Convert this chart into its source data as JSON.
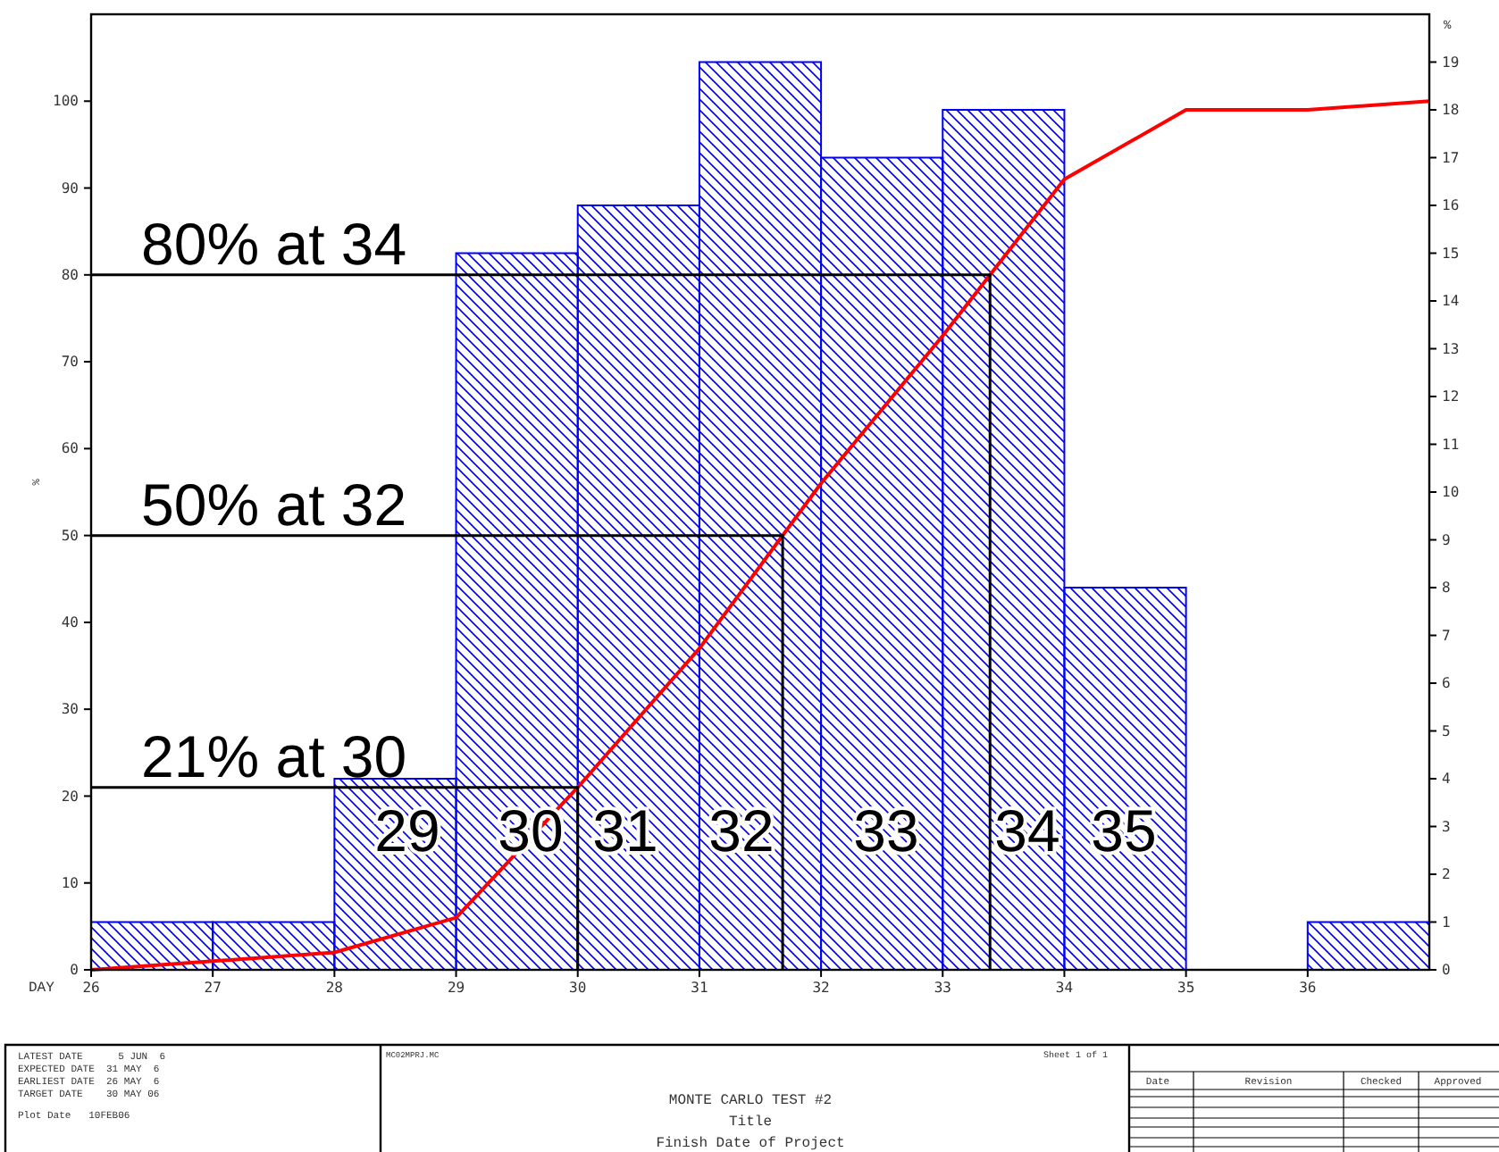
{
  "chart_data": {
    "type": "histogram",
    "title": "MONTE CARLO TEST #2",
    "xlabel": "DAY",
    "ylabel": "%",
    "y2label": "%",
    "bins": [
      26,
      27,
      28,
      29,
      30,
      31,
      32,
      33,
      34,
      35,
      36,
      37
    ],
    "series": [
      {
        "type": "histogram",
        "axis": "y2",
        "color": "#0000ff",
        "values": [
          1,
          1,
          4,
          15,
          16,
          19,
          17,
          18,
          8,
          0,
          1
        ]
      },
      {
        "type": "line",
        "color": "#ff0000",
        "x": [
          26,
          27,
          28,
          29,
          30,
          31,
          32,
          33,
          34,
          35,
          36,
          37
        ],
        "values": [
          0,
          1,
          2,
          6,
          21,
          37,
          56,
          73,
          91,
          99,
          99,
          100
        ]
      }
    ],
    "xlim": [
      26,
      37
    ],
    "xticks": [
      26,
      27,
      28,
      29,
      30,
      31,
      32,
      33,
      34,
      35,
      36
    ],
    "ylim": [
      0,
      110
    ],
    "yticks": [
      0,
      10,
      20,
      30,
      40,
      50,
      60,
      70,
      80,
      90,
      100
    ],
    "y2lim": [
      0,
      20
    ],
    "y2ticks": [
      0,
      1,
      2,
      3,
      4,
      5,
      6,
      7,
      8,
      9,
      10,
      11,
      12,
      13,
      14,
      15,
      16,
      17,
      18,
      19
    ],
    "marker": "none",
    "line_style": "solid",
    "ref_lines": [
      {
        "axis": "y",
        "value": 21,
        "label": "21% at 30",
        "color": "#000000"
      },
      {
        "axis": "y",
        "value": 50,
        "label": "50% at 32",
        "color": "#000000"
      },
      {
        "axis": "y",
        "value": 80,
        "label": "80% at 34",
        "color": "#000000"
      }
    ],
    "annotations": [
      "29",
      "30",
      "31",
      "32",
      "33",
      "34",
      "35",
      "LATEST DATE      5 JUN  6",
      "EXPECTED DATE  31 MAY  6",
      "EARLIEST DATE  26 MAY  6",
      "TARGET DATE    30 MAY 06",
      "Plot Date   10FEB06",
      "MC02MPRJ.MC",
      "Sheet 1 of 1",
      "Title",
      "Finish Date of Project",
      "Date",
      "Revision",
      "Checked",
      "Approved"
    ]
  }
}
